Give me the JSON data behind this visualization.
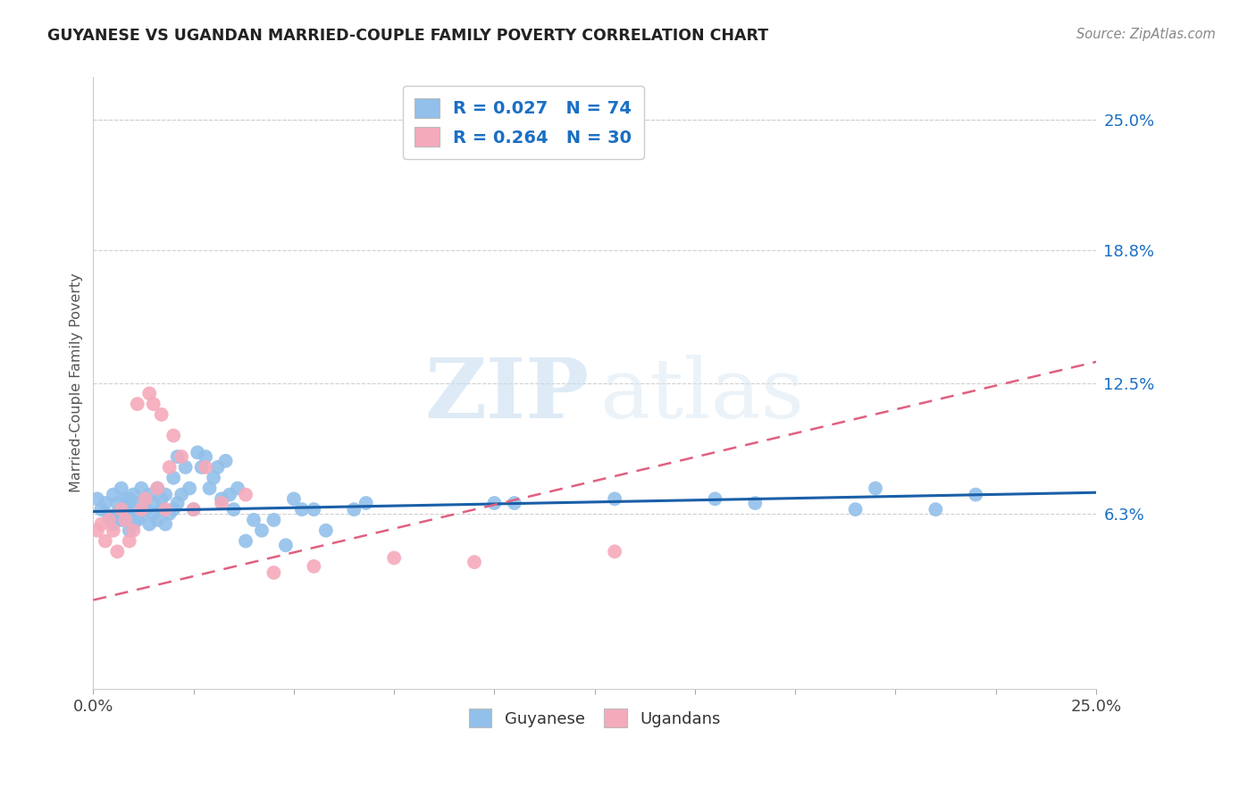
{
  "title": "GUYANESE VS UGANDAN MARRIED-COUPLE FAMILY POVERTY CORRELATION CHART",
  "source": "Source: ZipAtlas.com",
  "ylabel": "Married-Couple Family Poverty",
  "xlim": [
    0.0,
    0.25
  ],
  "ylim": [
    -0.02,
    0.27
  ],
  "ytick_vals": [
    0.063,
    0.125,
    0.188,
    0.25
  ],
  "ytick_labels": [
    "6.3%",
    "12.5%",
    "18.8%",
    "25.0%"
  ],
  "watermark_zip": "ZIP",
  "watermark_atlas": "atlas",
  "guyanese_color": "#92c0ea",
  "ugandan_color": "#f5aabb",
  "guyanese_line_color": "#1a5fa8",
  "ugandan_line_color": "#e06080",
  "legend_text_color": "#1a6fc4",
  "R_guyanese": 0.027,
  "N_guyanese": 74,
  "R_ugandan": 0.264,
  "N_ugandan": 30,
  "guyanese_x": [
    0.001,
    0.002,
    0.003,
    0.004,
    0.005,
    0.005,
    0.006,
    0.006,
    0.007,
    0.007,
    0.008,
    0.008,
    0.009,
    0.009,
    0.009,
    0.01,
    0.01,
    0.01,
    0.011,
    0.011,
    0.012,
    0.012,
    0.013,
    0.013,
    0.014,
    0.014,
    0.015,
    0.015,
    0.016,
    0.016,
    0.017,
    0.017,
    0.018,
    0.018,
    0.019,
    0.02,
    0.02,
    0.021,
    0.021,
    0.022,
    0.023,
    0.024,
    0.025,
    0.026,
    0.027,
    0.028,
    0.029,
    0.03,
    0.031,
    0.032,
    0.033,
    0.034,
    0.035,
    0.036,
    0.038,
    0.04,
    0.042,
    0.045,
    0.048,
    0.05,
    0.052,
    0.055,
    0.058,
    0.065,
    0.068,
    0.1,
    0.105,
    0.13,
    0.155,
    0.165,
    0.19,
    0.195,
    0.21,
    0.22
  ],
  "guyanese_y": [
    0.07,
    0.065,
    0.068,
    0.062,
    0.058,
    0.072,
    0.063,
    0.068,
    0.06,
    0.075,
    0.065,
    0.07,
    0.055,
    0.062,
    0.07,
    0.058,
    0.065,
    0.072,
    0.06,
    0.068,
    0.062,
    0.075,
    0.065,
    0.07,
    0.058,
    0.072,
    0.063,
    0.068,
    0.06,
    0.075,
    0.065,
    0.07,
    0.058,
    0.072,
    0.063,
    0.065,
    0.08,
    0.068,
    0.09,
    0.072,
    0.085,
    0.075,
    0.065,
    0.092,
    0.085,
    0.09,
    0.075,
    0.08,
    0.085,
    0.07,
    0.088,
    0.072,
    0.065,
    0.075,
    0.05,
    0.06,
    0.055,
    0.06,
    0.048,
    0.07,
    0.065,
    0.065,
    0.055,
    0.065,
    0.068,
    0.068,
    0.068,
    0.07,
    0.07,
    0.068,
    0.065,
    0.075,
    0.065,
    0.072
  ],
  "ugandan_x": [
    0.001,
    0.002,
    0.003,
    0.004,
    0.005,
    0.006,
    0.007,
    0.008,
    0.009,
    0.01,
    0.011,
    0.012,
    0.013,
    0.014,
    0.015,
    0.016,
    0.017,
    0.018,
    0.019,
    0.02,
    0.022,
    0.025,
    0.028,
    0.032,
    0.038,
    0.045,
    0.055,
    0.075,
    0.095,
    0.13
  ],
  "ugandan_y": [
    0.055,
    0.058,
    0.05,
    0.06,
    0.055,
    0.045,
    0.065,
    0.06,
    0.05,
    0.055,
    0.115,
    0.065,
    0.07,
    0.12,
    0.115,
    0.075,
    0.11,
    0.065,
    0.085,
    0.1,
    0.09,
    0.065,
    0.085,
    0.068,
    0.072,
    0.035,
    0.038,
    0.042,
    0.04,
    0.045
  ]
}
